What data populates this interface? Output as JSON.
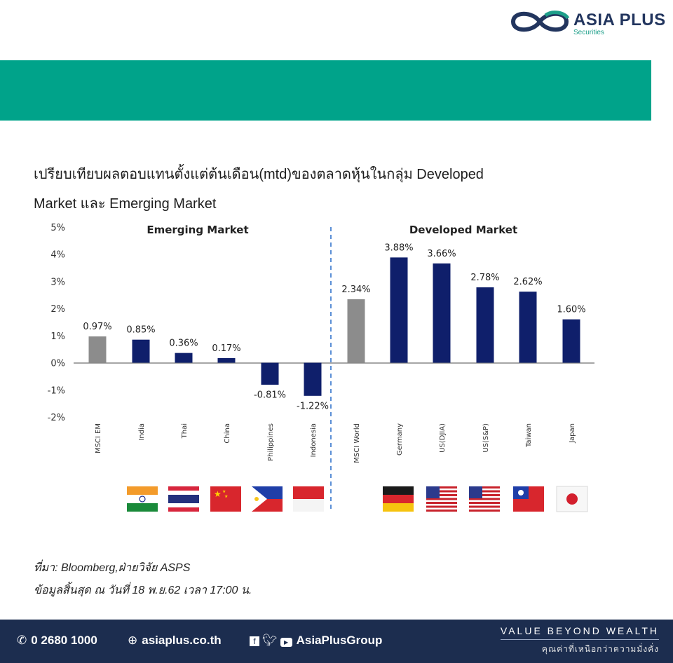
{
  "brand": {
    "name": "ASIA PLUS",
    "sub": "Securities"
  },
  "heading": {
    "line1": "เปรียบเทียบผลตอบแทนตั้งแต่ต้นเดือน(mtd)ของตลาดหุ้นในกลุ่ม Developed",
    "line2": "Market และ Emerging Market"
  },
  "chart_data": {
    "type": "bar",
    "categories": [
      "MSCI EM",
      "India",
      "Thai",
      "China",
      "Philippines",
      "Indonesia",
      "MSCI World",
      "Germany",
      "US(DJIA)",
      "US(S&P)",
      "Taiwan",
      "Japan"
    ],
    "values": [
      0.97,
      0.85,
      0.36,
      0.17,
      -0.81,
      -1.22,
      2.34,
      3.88,
      3.66,
      2.78,
      2.62,
      1.6
    ],
    "value_labels": [
      "0.97%",
      "0.85%",
      "0.36%",
      "0.17%",
      "-0.81%",
      "-1.22%",
      "2.34%",
      "3.88%",
      "3.66%",
      "2.78%",
      "2.62%",
      "1.60%"
    ],
    "groups": [
      {
        "name": "Emerging Market",
        "categories": [
          "MSCI EM",
          "India",
          "Thai",
          "China",
          "Philippines",
          "Indonesia"
        ]
      },
      {
        "name": "Developed Market",
        "categories": [
          "MSCI World",
          "Germany",
          "US(DJIA)",
          "US(S&P)",
          "Taiwan",
          "Japan"
        ]
      }
    ],
    "ylim": [
      -2,
      5
    ],
    "yticks": [
      "5%",
      "4%",
      "3%",
      "2%",
      "1%",
      "0%",
      "-1%",
      "-2%"
    ],
    "colors": {
      "index": "#8c8c8c",
      "market": "#0f1f6b"
    },
    "index_categories": [
      "MSCI EM",
      "MSCI World"
    ]
  },
  "flags": [
    "india-flag",
    "thailand-flag",
    "china-flag",
    "philippines-flag",
    "indonesia-flag",
    "germany-flag",
    "usa-flag",
    "usa-flag",
    "taiwan-flag",
    "japan-flag"
  ],
  "source": {
    "line1": "ที่มา: Bloomberg,ฝ่ายวิจัย ASPS",
    "line2": "ข้อมูลสิ้นสุด ณ วันที่ 18 พ.ย.62 เวลา 17:00 น."
  },
  "footer": {
    "phone": "0 2680 1000",
    "website": "asiaplus.co.th",
    "social": "AsiaPlusGroup",
    "tagline1": "VALUE BEYOND WEALTH",
    "tagline2": "คุณค่าที่เหนือกว่าความมั่งคั่ง"
  },
  "colors": {
    "banner": "#00a38a",
    "footer": "#1c2d4f",
    "brand_navy": "#22355e"
  }
}
